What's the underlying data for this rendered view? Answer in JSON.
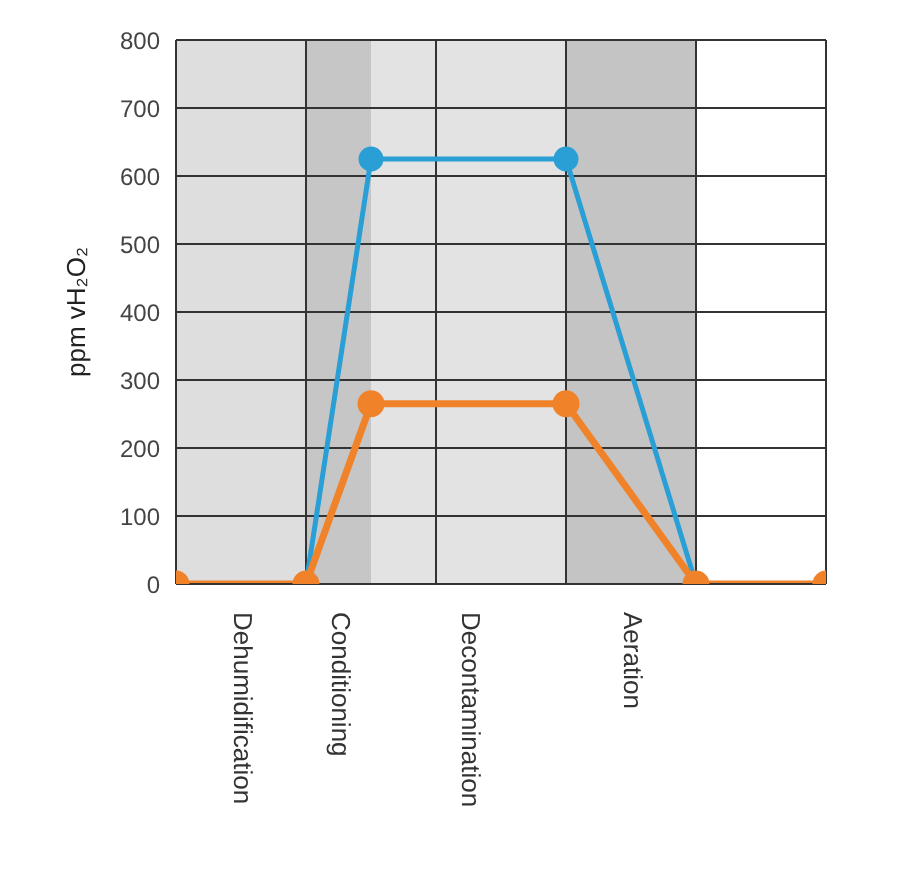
{
  "chart_data": {
    "type": "line",
    "ylabel": "ppm vH₂O₂",
    "categories": [
      null,
      null,
      "Dehumidification",
      null,
      null,
      "Conditioning",
      null,
      null,
      null,
      "Decontamination",
      null,
      null,
      null,
      null,
      "Aeration",
      null,
      null,
      null,
      null,
      null,
      null
    ],
    "ylim": [
      0,
      800
    ],
    "yticks": [
      0,
      100,
      200,
      300,
      400,
      500,
      600,
      700,
      800
    ],
    "grid": true,
    "legend": false,
    "marker": "circle",
    "line_style": "solid",
    "series": [
      {
        "color": "#2a9fd6",
        "values": [
          null,
          null,
          null,
          null,
          0,
          null,
          625,
          null,
          null,
          null,
          null,
          null,
          625,
          null,
          null,
          null,
          0,
          null,
          null,
          null,
          null
        ]
      },
      {
        "color": "#f0822a",
        "values": [
          0,
          null,
          null,
          null,
          0,
          null,
          265,
          null,
          null,
          null,
          null,
          null,
          265,
          null,
          null,
          null,
          0,
          null,
          null,
          null,
          0
        ]
      }
    ]
  }
}
